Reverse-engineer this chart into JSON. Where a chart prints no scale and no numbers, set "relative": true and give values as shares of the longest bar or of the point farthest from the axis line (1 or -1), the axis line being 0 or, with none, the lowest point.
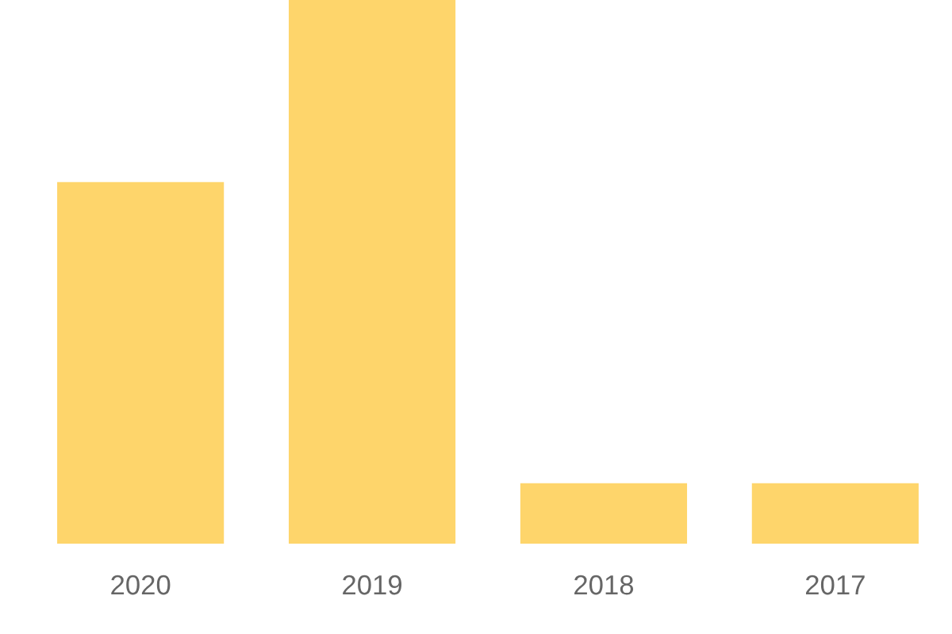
{
  "chart_data": {
    "type": "bar",
    "relative": true,
    "categories": [
      "2020",
      "2019",
      "2018",
      "2017"
    ],
    "values": [
      0.665,
      1,
      0.111,
      0.111
    ],
    "color": "#fed56b",
    "grid": false,
    "legend": false
  }
}
